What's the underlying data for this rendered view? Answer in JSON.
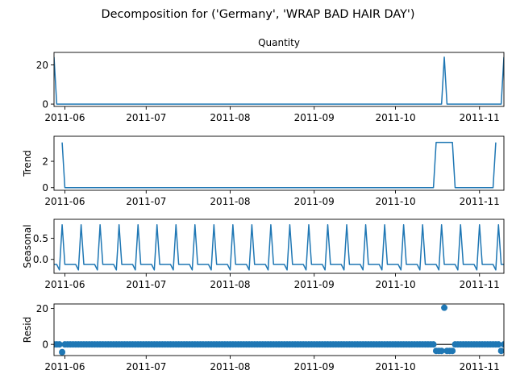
{
  "chart_data": {
    "suptitle": "Decomposition for ('Germany', 'WRAP BAD HAIR DAY')",
    "line_color": "#1f77b4",
    "x_ticks": [
      "2011-06-01",
      "2011-07-01",
      "2011-08-01",
      "2011-09-01",
      "2011-10-01",
      "2011-11-01"
    ],
    "x_tick_labels": [
      "2011-06",
      "2011-07",
      "2011-08",
      "2011-09",
      "2011-10",
      "2011-11"
    ],
    "x_range": [
      "2011-05-28",
      "2011-11-10"
    ],
    "panels": [
      {
        "key": "observed",
        "type": "line",
        "title": "Quantity",
        "ylabel": "",
        "ylim": [
          -1.2,
          26.4
        ],
        "y_ticks": [
          0,
          20
        ],
        "points": [
          [
            "2011-05-28",
            24
          ],
          [
            "2011-05-29",
            0
          ],
          [
            "2011-10-18",
            0
          ],
          [
            "2011-10-19",
            24
          ],
          [
            "2011-10-20",
            0
          ],
          [
            "2011-11-09",
            0
          ],
          [
            "2011-11-10",
            24
          ]
        ]
      },
      {
        "key": "trend",
        "type": "line",
        "title": "",
        "ylabel": "Trend",
        "ylim": [
          -0.2,
          3.9
        ],
        "y_ticks": [
          0,
          2
        ],
        "points": [
          [
            "2011-05-31",
            3.43
          ],
          [
            "2011-06-01",
            0
          ],
          [
            "2011-10-15",
            0
          ],
          [
            "2011-10-16",
            3.43
          ],
          [
            "2011-10-22",
            3.43
          ],
          [
            "2011-10-23",
            0
          ],
          [
            "2011-11-06",
            0
          ],
          [
            "2011-11-07",
            3.43
          ]
        ]
      },
      {
        "key": "seasonal",
        "type": "seasonal",
        "title": "",
        "ylabel": "Seasonal",
        "ylim": [
          -0.33,
          0.95
        ],
        "y_ticks": [
          0.0,
          0.5
        ],
        "y_tick_labels": [
          "0.0",
          "0.5"
        ],
        "weekly_pattern": [
          0.82,
          -0.12,
          -0.12,
          -0.12,
          -0.12,
          -0.12,
          -0.25
        ],
        "pattern_start": "2011-05-31"
      },
      {
        "key": "resid",
        "type": "scatter",
        "title": "",
        "ylabel": "Resid",
        "ylim": [
          -6.2,
          22.5
        ],
        "y_ticks": [
          0,
          20
        ],
        "zero_line": true,
        "points": [
          [
            "2011-05-31",
            -4.3
          ],
          [
            "2011-10-16",
            -3.6
          ],
          [
            "2011-10-17",
            -3.6
          ],
          [
            "2011-10-18",
            -3.6
          ],
          [
            "2011-10-19",
            20.4
          ],
          [
            "2011-10-20",
            -3.6
          ],
          [
            "2011-10-21",
            -3.6
          ],
          [
            "2011-10-22",
            -3.6
          ],
          [
            "2011-11-09",
            -3.6
          ]
        ]
      }
    ]
  }
}
